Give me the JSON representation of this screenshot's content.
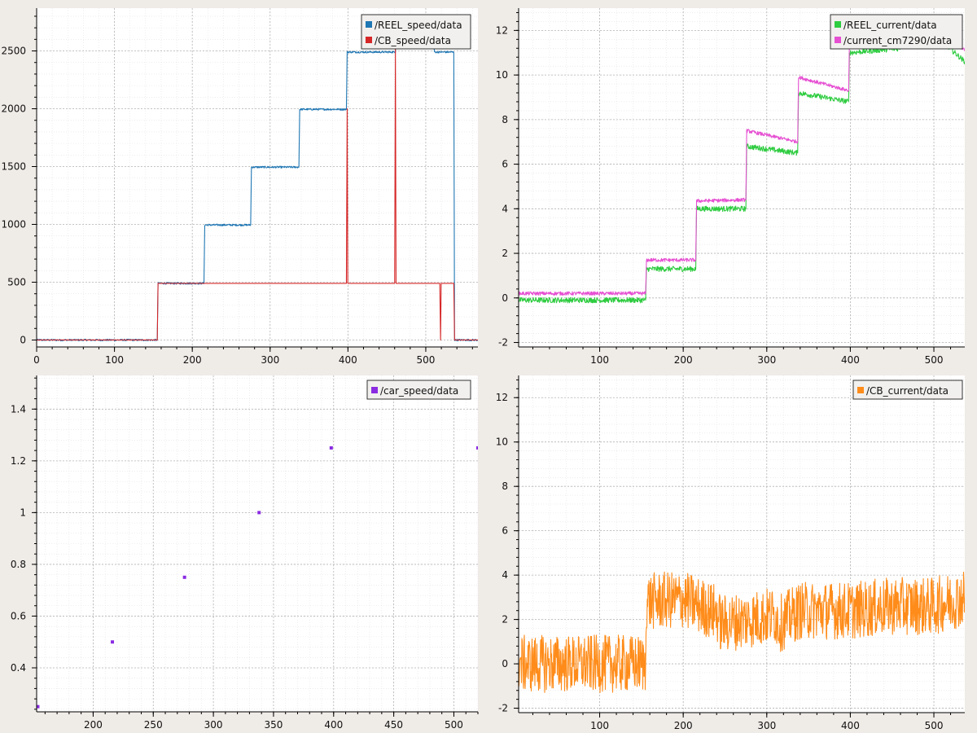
{
  "chart_data": [
    {
      "type": "line",
      "grid": true,
      "legend_position": "top-right",
      "xlim": [
        0,
        567
      ],
      "ylim": [
        -60,
        2870
      ],
      "x_ticks": [
        0,
        100,
        200,
        300,
        400,
        500
      ],
      "y_ticks": [
        0,
        500,
        1000,
        1500,
        2000,
        2500
      ],
      "series": [
        {
          "name": "/REEL_speed/data",
          "color": "#1f77b4",
          "noise": 8,
          "points": [
            [
              0,
              0
            ],
            [
              155,
              0
            ],
            [
              156,
              490
            ],
            [
              215,
              490
            ],
            [
              216,
              995
            ],
            [
              275,
              995
            ],
            [
              276,
              1495
            ],
            [
              337,
              1495
            ],
            [
              338,
              1995
            ],
            [
              398,
              1995
            ],
            [
              399,
              2490
            ],
            [
              461,
              2490
            ],
            [
              462,
              2800
            ],
            [
              510,
              2800
            ],
            [
              511,
              2490
            ],
            [
              536,
              2490
            ],
            [
              537,
              0
            ],
            [
              567,
              0
            ]
          ]
        },
        {
          "name": "/CB_speed/data",
          "color": "#d62728",
          "noise": 0,
          "points": [
            [
              0,
              0
            ],
            [
              155,
              0
            ],
            [
              156,
              490
            ],
            [
              398,
              490
            ],
            [
              399,
              2000
            ],
            [
              399.8,
              490
            ],
            [
              460,
              490
            ],
            [
              461,
              2520
            ],
            [
              461.8,
              490
            ],
            [
              518,
              490
            ],
            [
              519,
              0
            ],
            [
              519.8,
              490
            ],
            [
              536,
              490
            ],
            [
              537,
              0
            ],
            [
              567,
              0
            ]
          ]
        }
      ]
    },
    {
      "type": "line",
      "grid": true,
      "legend_position": "top-right",
      "xlim": [
        3,
        537
      ],
      "ylim": [
        -2.2,
        13
      ],
      "x_ticks": [
        100,
        200,
        300,
        400,
        500
      ],
      "y_ticks": [
        -2,
        0,
        2,
        4,
        6,
        8,
        10,
        12
      ],
      "series": [
        {
          "name": "/REEL_current/data",
          "color": "#2ecc40",
          "noise": 0.12,
          "points": [
            [
              3,
              -0.1
            ],
            [
              155,
              -0.1
            ],
            [
              156,
              1.3
            ],
            [
              215,
              1.3
            ],
            [
              216,
              4.0
            ],
            [
              275,
              4.0
            ],
            [
              276,
              6.8
            ],
            [
              337,
              6.5
            ],
            [
              338,
              9.2
            ],
            [
              398,
              8.8
            ],
            [
              399,
              11.0
            ],
            [
              460,
              11.2
            ],
            [
              461,
              11.8
            ],
            [
              510,
              11.5
            ],
            [
              537,
              10.6
            ]
          ]
        },
        {
          "name": "/current_cm7290/data",
          "color": "#e64fd2",
          "noise": 0.08,
          "points": [
            [
              3,
              0.2
            ],
            [
              155,
              0.2
            ],
            [
              156,
              1.7
            ],
            [
              215,
              1.7
            ],
            [
              216,
              4.35
            ],
            [
              275,
              4.4
            ],
            [
              276,
              7.5
            ],
            [
              337,
              7.0
            ],
            [
              338,
              9.9
            ],
            [
              398,
              9.3
            ],
            [
              399,
              11.6
            ],
            [
              460,
              11.9
            ],
            [
              461,
              12.3
            ],
            [
              510,
              12.0
            ],
            [
              537,
              11.1
            ]
          ]
        }
      ]
    },
    {
      "type": "scatter",
      "grid": true,
      "legend_position": "top-right",
      "xlim": [
        153,
        520
      ],
      "ylim": [
        0.23,
        1.53
      ],
      "x_ticks": [
        200,
        250,
        300,
        350,
        400,
        450,
        500
      ],
      "y_ticks": [
        0.4,
        0.6,
        0.8,
        1,
        1.2,
        1.4
      ],
      "y_tick_labels": [
        "0.4",
        "0.6",
        "0.8",
        "1",
        "1.2",
        "1.4"
      ],
      "series": [
        {
          "name": "/car_speed/data",
          "color": "#8a2be2",
          "points": [
            [
              154,
              0.25
            ],
            [
              216,
              0.5
            ],
            [
              276,
              0.75
            ],
            [
              338,
              1.0
            ],
            [
              398,
              1.25
            ],
            [
              459,
              1.5
            ],
            [
              520,
              1.25
            ]
          ]
        }
      ]
    },
    {
      "type": "line",
      "grid": true,
      "legend_position": "top-right",
      "xlim": [
        3,
        537
      ],
      "ylim": [
        -2.2,
        13
      ],
      "x_ticks": [
        100,
        200,
        300,
        400,
        500
      ],
      "y_ticks": [
        -2,
        0,
        2,
        4,
        6,
        8,
        10,
        12
      ],
      "series": [
        {
          "name": "/CB_current/data",
          "color": "#ff8c1a",
          "noise": 1.3,
          "points": [
            [
              3,
              0.0
            ],
            [
              155,
              0.0
            ],
            [
              156,
              2.8
            ],
            [
              200,
              2.9
            ],
            [
              240,
              2.3
            ],
            [
              245,
              1.8
            ],
            [
              280,
              2.0
            ],
            [
              310,
              2.2
            ],
            [
              315,
              1.8
            ],
            [
              340,
              2.4
            ],
            [
              400,
              2.4
            ],
            [
              450,
              2.6
            ],
            [
              500,
              2.6
            ],
            [
              537,
              3.0
            ]
          ]
        }
      ]
    }
  ]
}
